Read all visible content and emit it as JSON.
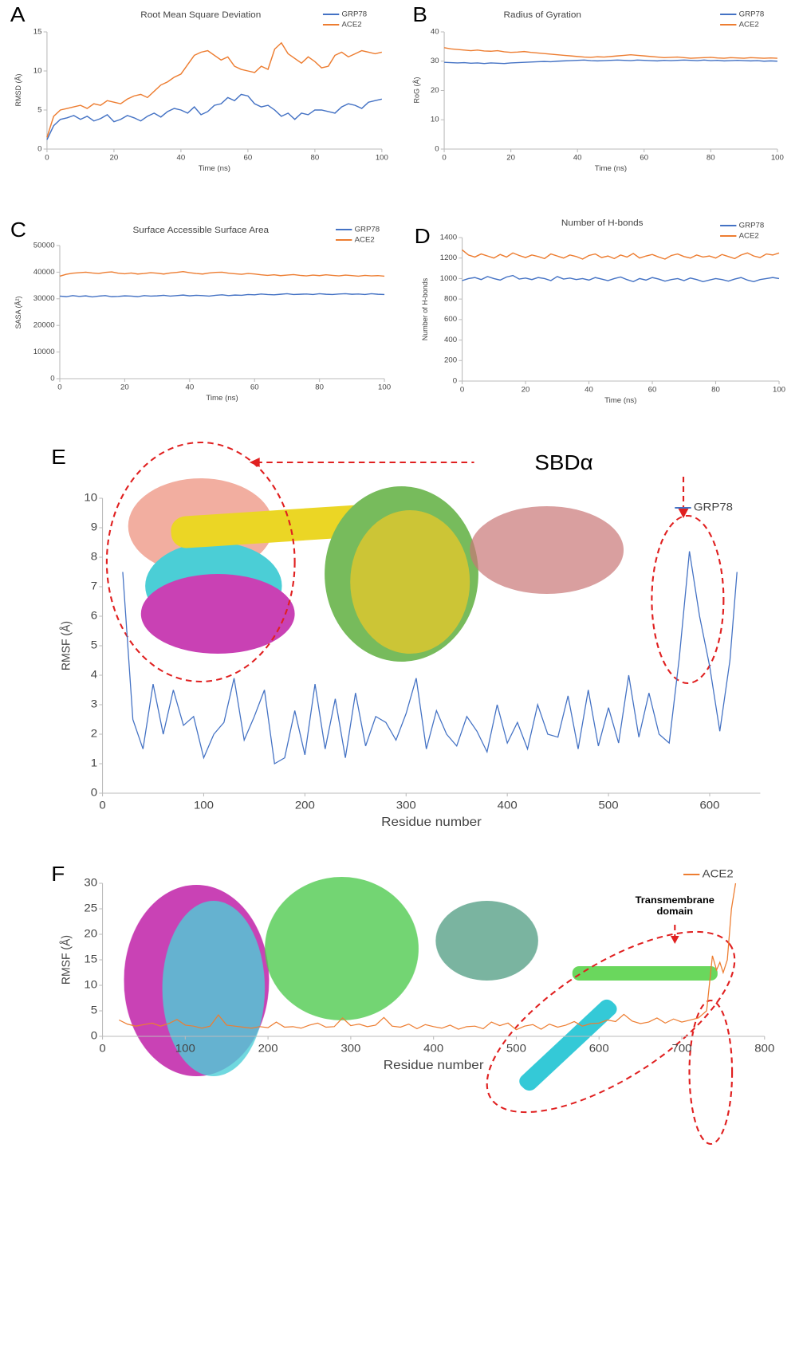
{
  "chart_data": [
    {
      "type": "line",
      "panel_label": "A",
      "title": "Root Mean Square Deviation",
      "xlabel": "Time (ns)",
      "ylabel": "RMSD (Å)",
      "xlim": [
        0,
        100
      ],
      "xticks": [
        0,
        20,
        40,
        60,
        80,
        100
      ],
      "ylim": [
        0,
        15
      ],
      "yticks": [
        0,
        5,
        10,
        15
      ],
      "x": [
        0,
        2,
        4,
        6,
        8,
        10,
        12,
        14,
        16,
        18,
        20,
        22,
        24,
        26,
        28,
        30,
        32,
        34,
        36,
        38,
        40,
        42,
        44,
        46,
        48,
        50,
        52,
        54,
        56,
        58,
        60,
        62,
        64,
        66,
        68,
        70,
        72,
        74,
        76,
        78,
        80,
        82,
        84,
        86,
        88,
        90,
        92,
        94,
        96,
        98,
        100
      ],
      "series": [
        {
          "name": "GRP78",
          "color": "#4472c4",
          "values": [
            1.2,
            3.0,
            3.8,
            4.0,
            4.3,
            3.8,
            4.2,
            3.6,
            3.9,
            4.4,
            3.5,
            3.8,
            4.3,
            4.0,
            3.6,
            4.2,
            4.6,
            4.1,
            4.8,
            5.2,
            5.0,
            4.6,
            5.4,
            4.4,
            4.8,
            5.6,
            5.8,
            6.6,
            6.2,
            7.0,
            6.8,
            5.8,
            5.4,
            5.6,
            5.0,
            4.2,
            4.6,
            3.8,
            4.6,
            4.4,
            5.0,
            5.0,
            4.8,
            4.6,
            5.4,
            5.8,
            5.6,
            5.2,
            6.0,
            6.2,
            6.4
          ]
        },
        {
          "name": "ACE2",
          "color": "#ed7d31",
          "values": [
            1.5,
            4.2,
            5.0,
            5.2,
            5.4,
            5.6,
            5.2,
            5.8,
            5.6,
            6.2,
            6.0,
            5.8,
            6.4,
            6.8,
            7.0,
            6.6,
            7.4,
            8.2,
            8.6,
            9.2,
            9.6,
            10.8,
            12.0,
            12.4,
            12.6,
            12.0,
            11.4,
            11.8,
            10.6,
            10.2,
            10.0,
            9.8,
            10.6,
            10.2,
            12.8,
            13.6,
            12.2,
            11.6,
            11.0,
            11.8,
            11.2,
            10.4,
            10.6,
            12.0,
            12.4,
            11.8,
            12.2,
            12.6,
            12.4,
            12.2,
            12.4
          ]
        }
      ]
    },
    {
      "type": "line",
      "panel_label": "B",
      "title": "Radius of Gyration",
      "xlabel": "Time (ns)",
      "ylabel": "RoG (Å)",
      "xlim": [
        0,
        100
      ],
      "xticks": [
        0,
        20,
        40,
        60,
        80,
        100
      ],
      "ylim": [
        0,
        40
      ],
      "yticks": [
        0,
        10,
        20,
        30,
        40
      ],
      "x": [
        0,
        2,
        4,
        6,
        8,
        10,
        12,
        14,
        16,
        18,
        20,
        22,
        24,
        26,
        28,
        30,
        32,
        34,
        36,
        38,
        40,
        42,
        44,
        46,
        48,
        50,
        52,
        54,
        56,
        58,
        60,
        62,
        64,
        66,
        68,
        70,
        72,
        74,
        76,
        78,
        80,
        82,
        84,
        86,
        88,
        90,
        92,
        94,
        96,
        98,
        100
      ],
      "series": [
        {
          "name": "GRP78",
          "color": "#4472c4",
          "values": [
            29.6,
            29.5,
            29.4,
            29.5,
            29.3,
            29.4,
            29.2,
            29.4,
            29.3,
            29.2,
            29.4,
            29.5,
            29.6,
            29.7,
            29.8,
            29.9,
            29.8,
            30.0,
            30.1,
            30.2,
            30.3,
            30.4,
            30.2,
            30.1,
            30.2,
            30.3,
            30.4,
            30.3,
            30.2,
            30.4,
            30.3,
            30.2,
            30.1,
            30.3,
            30.2,
            30.3,
            30.4,
            30.3,
            30.2,
            30.4,
            30.2,
            30.3,
            30.1,
            30.2,
            30.3,
            30.2,
            30.1,
            30.2,
            30.0,
            30.1,
            30.0
          ]
        },
        {
          "name": "ACE2",
          "color": "#ed7d31",
          "values": [
            34.6,
            34.2,
            34.0,
            33.8,
            33.6,
            33.8,
            33.5,
            33.4,
            33.6,
            33.2,
            33.0,
            33.1,
            33.3,
            33.0,
            32.8,
            32.6,
            32.4,
            32.2,
            32.0,
            31.8,
            31.6,
            31.4,
            31.3,
            31.5,
            31.4,
            31.6,
            31.8,
            32.0,
            32.2,
            32.0,
            31.8,
            31.6,
            31.4,
            31.2,
            31.3,
            31.4,
            31.2,
            31.0,
            31.1,
            31.2,
            31.3,
            31.1,
            31.0,
            31.2,
            31.1,
            31.0,
            31.2,
            31.1,
            31.0,
            31.1,
            31.0
          ]
        }
      ]
    },
    {
      "type": "line",
      "panel_label": "C",
      "title": "Surface Accessible Surface Area",
      "xlabel": "Time (ns)",
      "ylabel": "SASA (Å²)",
      "xlim": [
        0,
        100
      ],
      "xticks": [
        0,
        20,
        40,
        60,
        80,
        100
      ],
      "ylim": [
        0,
        50000
      ],
      "yticks": [
        0,
        10000,
        20000,
        30000,
        40000,
        50000
      ],
      "x": [
        0,
        2,
        4,
        6,
        8,
        10,
        12,
        14,
        16,
        18,
        20,
        22,
        24,
        26,
        28,
        30,
        32,
        34,
        36,
        38,
        40,
        42,
        44,
        46,
        48,
        50,
        52,
        54,
        56,
        58,
        60,
        62,
        64,
        66,
        68,
        70,
        72,
        74,
        76,
        78,
        80,
        82,
        84,
        86,
        88,
        90,
        92,
        94,
        96,
        98,
        100
      ],
      "series": [
        {
          "name": "GRP78",
          "color": "#4472c4",
          "values": [
            31000,
            30800,
            31200,
            30900,
            31100,
            30700,
            31000,
            31200,
            30800,
            30900,
            31100,
            31000,
            30800,
            31200,
            31000,
            31100,
            31300,
            31000,
            31200,
            31400,
            31100,
            31300,
            31200,
            31000,
            31300,
            31500,
            31200,
            31400,
            31300,
            31600,
            31500,
            31800,
            31600,
            31500,
            31700,
            31900,
            31600,
            31700,
            31800,
            31600,
            31900,
            31700,
            31600,
            31800,
            31900,
            31700,
            31800,
            31600,
            31900,
            31700,
            31600
          ]
        },
        {
          "name": "ACE2",
          "color": "#ed7d31",
          "values": [
            38500,
            39200,
            39600,
            39800,
            40000,
            39700,
            39500,
            39900,
            40100,
            39600,
            39400,
            39700,
            39300,
            39500,
            39800,
            39600,
            39300,
            39700,
            39900,
            40200,
            39800,
            39500,
            39300,
            39700,
            39900,
            40000,
            39600,
            39400,
            39200,
            39500,
            39300,
            39000,
            38800,
            39000,
            38700,
            38900,
            39100,
            38800,
            38600,
            38900,
            38700,
            39000,
            38800,
            38600,
            38900,
            38700,
            38500,
            38800,
            38600,
            38700,
            38500
          ]
        }
      ]
    },
    {
      "type": "line",
      "panel_label": "D",
      "title": "Number of H-bonds",
      "xlabel": "Time (ns)",
      "ylabel": "Number of H-bonds",
      "xlim": [
        0,
        100
      ],
      "xticks": [
        0,
        20,
        40,
        60,
        80,
        100
      ],
      "ylim": [
        0,
        1400
      ],
      "yticks": [
        0,
        200,
        400,
        600,
        800,
        1000,
        1200,
        1400
      ],
      "x": [
        0,
        2,
        4,
        6,
        8,
        10,
        12,
        14,
        16,
        18,
        20,
        22,
        24,
        26,
        28,
        30,
        32,
        34,
        36,
        38,
        40,
        42,
        44,
        46,
        48,
        50,
        52,
        54,
        56,
        58,
        60,
        62,
        64,
        66,
        68,
        70,
        72,
        74,
        76,
        78,
        80,
        82,
        84,
        86,
        88,
        90,
        92,
        94,
        96,
        98,
        100
      ],
      "series": [
        {
          "name": "GRP78",
          "color": "#4472c4",
          "values": [
            980,
            1000,
            1010,
            990,
            1020,
            1000,
            985,
            1015,
            1030,
            995,
            1005,
            990,
            1010,
            1000,
            980,
            1020,
            995,
            1005,
            990,
            1000,
            985,
            1010,
            995,
            980,
            1000,
            1015,
            990,
            970,
            1000,
            985,
            1010,
            995,
            975,
            990,
            1000,
            980,
            1005,
            990,
            970,
            985,
            1000,
            990,
            975,
            995,
            1010,
            985,
            970,
            990,
            1000,
            1010,
            1000
          ]
        },
        {
          "name": "ACE2",
          "color": "#ed7d31",
          "values": [
            1280,
            1230,
            1210,
            1240,
            1220,
            1200,
            1235,
            1210,
            1250,
            1225,
            1205,
            1230,
            1215,
            1195,
            1240,
            1220,
            1200,
            1230,
            1215,
            1190,
            1225,
            1240,
            1205,
            1220,
            1195,
            1230,
            1210,
            1245,
            1200,
            1220,
            1235,
            1210,
            1190,
            1225,
            1240,
            1215,
            1200,
            1230,
            1210,
            1220,
            1200,
            1235,
            1215,
            1195,
            1230,
            1250,
            1220,
            1205,
            1240,
            1230,
            1250
          ]
        }
      ]
    },
    {
      "type": "line",
      "panel_label": "E",
      "xlabel": "Residue number",
      "ylabel": "RMSF (Å)",
      "annotation": "SBDα",
      "xlim": [
        0,
        650
      ],
      "xticks": [
        0,
        100,
        200,
        300,
        400,
        500,
        600
      ],
      "ylim": [
        0,
        10
      ],
      "yticks": [
        0,
        1,
        2,
        3,
        4,
        5,
        6,
        7,
        8,
        9,
        10
      ],
      "x": [
        20,
        30,
        40,
        50,
        60,
        70,
        80,
        90,
        100,
        110,
        120,
        130,
        140,
        150,
        160,
        170,
        180,
        190,
        200,
        210,
        220,
        230,
        240,
        250,
        260,
        270,
        280,
        290,
        300,
        310,
        320,
        330,
        340,
        350,
        360,
        370,
        380,
        390,
        400,
        410,
        420,
        430,
        440,
        450,
        460,
        470,
        480,
        490,
        500,
        510,
        520,
        530,
        540,
        550,
        560,
        570,
        580,
        590,
        600,
        610,
        620,
        627
      ],
      "series": [
        {
          "name": "GRP78",
          "color": "#4472c4",
          "values": [
            7.5,
            2.5,
            1.5,
            3.7,
            2.0,
            3.5,
            2.3,
            2.6,
            1.2,
            2.0,
            2.4,
            3.9,
            1.8,
            2.6,
            3.5,
            1.0,
            1.2,
            2.8,
            1.3,
            3.7,
            1.5,
            3.2,
            1.2,
            3.4,
            1.6,
            2.6,
            2.4,
            1.8,
            2.7,
            3.9,
            1.5,
            2.8,
            2.0,
            1.6,
            2.6,
            2.1,
            1.4,
            3.0,
            1.7,
            2.4,
            1.5,
            3.0,
            2.0,
            1.9,
            3.3,
            1.5,
            3.5,
            1.6,
            2.9,
            1.7,
            4.0,
            1.9,
            3.4,
            2.0,
            1.7,
            4.6,
            8.2,
            6.0,
            4.3,
            2.1,
            4.5,
            7.5
          ]
        }
      ]
    },
    {
      "type": "line",
      "panel_label": "F",
      "xlabel": "Residue number",
      "ylabel": "RMSF (Å)",
      "annotation": "Transmembrane domain",
      "xlim": [
        0,
        800
      ],
      "xticks": [
        0,
        100,
        200,
        300,
        400,
        500,
        600,
        700,
        800
      ],
      "ylim": [
        0,
        30
      ],
      "yticks": [
        0,
        5,
        10,
        15,
        20,
        25,
        30
      ],
      "x": [
        20,
        30,
        40,
        50,
        60,
        70,
        80,
        90,
        100,
        110,
        120,
        130,
        140,
        150,
        160,
        170,
        180,
        190,
        200,
        210,
        220,
        230,
        240,
        250,
        260,
        270,
        280,
        290,
        300,
        310,
        320,
        330,
        340,
        350,
        360,
        370,
        380,
        390,
        400,
        410,
        420,
        430,
        440,
        450,
        460,
        470,
        480,
        490,
        500,
        510,
        520,
        530,
        540,
        550,
        560,
        570,
        580,
        590,
        600,
        610,
        620,
        630,
        640,
        650,
        660,
        670,
        680,
        690,
        700,
        710,
        720,
        730,
        737,
        742,
        746,
        750,
        755,
        760,
        765
      ],
      "series": [
        {
          "name": "ACE2",
          "color": "#ed7d31",
          "values": [
            3.2,
            2.4,
            2.0,
            2.3,
            2.6,
            2.0,
            2.5,
            3.3,
            2.2,
            2.0,
            1.6,
            2.0,
            4.2,
            2.2,
            2.0,
            1.8,
            1.6,
            1.9,
            1.7,
            2.8,
            1.8,
            1.9,
            1.6,
            2.2,
            2.6,
            1.8,
            1.9,
            3.6,
            2.1,
            2.4,
            1.9,
            2.2,
            3.7,
            2.0,
            1.8,
            2.4,
            1.5,
            2.3,
            1.9,
            1.6,
            2.2,
            1.4,
            1.9,
            2.0,
            1.5,
            2.8,
            2.1,
            2.6,
            1.3,
            2.0,
            2.3,
            1.4,
            2.4,
            1.8,
            2.2,
            2.9,
            2.0,
            2.5,
            2.6,
            3.2,
            2.9,
            4.3,
            3.0,
            2.5,
            2.8,
            3.6,
            2.6,
            3.4,
            2.8,
            3.2,
            3.6,
            5.0,
            15.8,
            13.0,
            14.5,
            12.5,
            15.0,
            25.0,
            30.0
          ]
        }
      ]
    }
  ]
}
